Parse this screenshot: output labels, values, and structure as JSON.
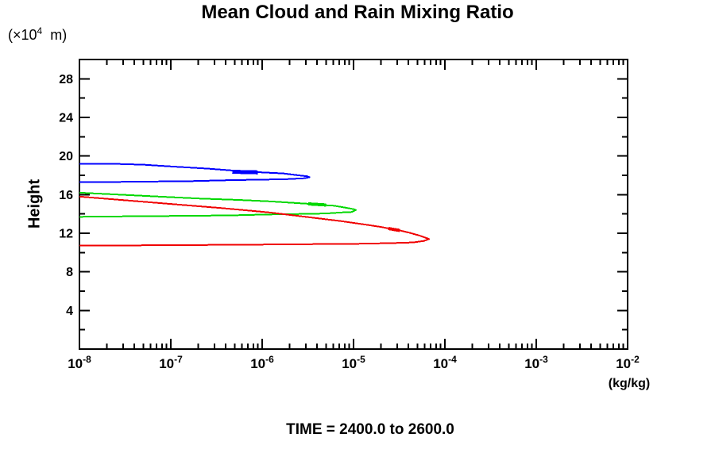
{
  "title": "Mean Cloud and Rain Mixing Ratio",
  "y_axis_unit": {
    "pre": "(×10",
    "exp": "4",
    "post": "  m)"
  },
  "y_axis_label": "Height",
  "x_axis_unit": "(kg/kg)",
  "caption": "TIME = 2400.0 to 2600.0",
  "chart_data": {
    "type": "line",
    "title": "Mean Cloud and Rain Mixing Ratio",
    "xlabel": "(kg/kg)",
    "ylabel": "Height (×10⁴ m)",
    "x_scale": "log",
    "xlim": [
      1e-08,
      0.01
    ],
    "ylim": [
      0,
      30
    ],
    "grid": false,
    "legend": "none",
    "x_ticks": [
      {
        "base": "10",
        "exp": "-8",
        "value": 1e-08
      },
      {
        "base": "10",
        "exp": "-7",
        "value": 1e-07
      },
      {
        "base": "10",
        "exp": "-6",
        "value": 1e-06
      },
      {
        "base": "10",
        "exp": "-5",
        "value": 1e-05
      },
      {
        "base": "10",
        "exp": "-4",
        "value": 0.0001
      },
      {
        "base": "10",
        "exp": "-3",
        "value": 0.001
      },
      {
        "base": "10",
        "exp": "-2",
        "value": 0.01
      }
    ],
    "x_minor_decades": [
      -8,
      -7,
      -6,
      -5,
      -4,
      -3
    ],
    "x_minor_multipliers": [
      2,
      3,
      4,
      5,
      6,
      7,
      8,
      9
    ],
    "y_major_ticks": [
      4,
      8,
      12,
      16,
      20,
      24,
      28
    ],
    "y_minor_ticks": [
      2,
      6,
      10,
      14,
      18,
      22,
      26,
      30
    ],
    "series": [
      {
        "name": "blue-contour",
        "color": "#0000ff",
        "points": [
          [
            1e-08,
            19.2
          ],
          [
            2.2e-08,
            19.2
          ],
          [
            5e-08,
            19.1
          ],
          [
            1.1e-07,
            18.9
          ],
          [
            2.5e-07,
            18.7
          ],
          [
            4.7e-07,
            18.5
          ],
          [
            1e-06,
            18.3
          ],
          [
            1.7e-06,
            18.2
          ],
          [
            2.5e-06,
            18.0
          ],
          [
            3.1e-06,
            17.9
          ],
          [
            3.3e-06,
            17.8
          ],
          [
            2.9e-06,
            17.7
          ],
          [
            1.8e-06,
            17.6
          ],
          [
            4.5e-07,
            17.5
          ],
          [
            1.7e-07,
            17.4
          ],
          [
            1.8e-08,
            17.3
          ],
          [
            1e-08,
            17.3
          ]
        ],
        "emphasis": [
          [
            4.7e-07,
            18.37
          ],
          [
            9e-07,
            18.3
          ]
        ],
        "emphasis_width": 5
      },
      {
        "name": "green-contour",
        "color": "#00d800",
        "points": [
          [
            1e-08,
            16.2
          ],
          [
            2.7e-08,
            16.0
          ],
          [
            7.4e-08,
            15.8
          ],
          [
            2e-07,
            15.6
          ],
          [
            5.5e-07,
            15.45
          ],
          [
            1.2e-06,
            15.3
          ],
          [
            2.2e-06,
            15.15
          ],
          [
            3.2e-06,
            15.05
          ],
          [
            5e-06,
            14.9
          ],
          [
            6.1e-06,
            14.85
          ],
          [
            8.2e-06,
            14.65
          ],
          [
            1e-05,
            14.5
          ],
          [
            1.06e-05,
            14.4
          ],
          [
            9.6e-06,
            14.2
          ],
          [
            7.4e-06,
            14.15
          ],
          [
            5e-06,
            14.05
          ],
          [
            2.7e-06,
            14.0
          ],
          [
            1.2e-06,
            13.95
          ],
          [
            4.5e-07,
            13.85
          ],
          [
            1.4e-07,
            13.8
          ],
          [
            3.3e-08,
            13.75
          ],
          [
            1e-08,
            13.7
          ]
        ],
        "emphasis": [
          [
            3.2e-06,
            15.04
          ],
          [
            5e-06,
            14.93
          ]
        ],
        "emphasis_width": 4
      },
      {
        "name": "red-contour",
        "color": "#f00000",
        "points": [
          [
            1e-08,
            15.8
          ],
          [
            3.3e-08,
            15.4
          ],
          [
            1.1e-07,
            15.0
          ],
          [
            3.7e-07,
            14.6
          ],
          [
            1.2e-06,
            14.15
          ],
          [
            3.3e-06,
            13.65
          ],
          [
            7.4e-06,
            13.25
          ],
          [
            1.35e-05,
            12.9
          ],
          [
            2e-05,
            12.65
          ],
          [
            2.4e-05,
            12.5
          ],
          [
            3.2e-05,
            12.3
          ],
          [
            4.1e-05,
            12.05
          ],
          [
            5.3e-05,
            11.75
          ],
          [
            6.3e-05,
            11.5
          ],
          [
            6.7e-05,
            11.4
          ],
          [
            5.9e-05,
            11.2
          ],
          [
            4.5e-05,
            11.05
          ],
          [
            2.5e-05,
            10.97
          ],
          [
            1.1e-05,
            10.91
          ],
          [
            4.1e-06,
            10.87
          ],
          [
            1.2e-06,
            10.83
          ],
          [
            3e-07,
            10.79
          ],
          [
            6.1e-08,
            10.75
          ],
          [
            1e-08,
            10.72
          ]
        ],
        "emphasis": [
          [
            2.4e-05,
            12.49
          ],
          [
            3.2e-05,
            12.29
          ]
        ],
        "emphasis_width": 4
      }
    ]
  }
}
